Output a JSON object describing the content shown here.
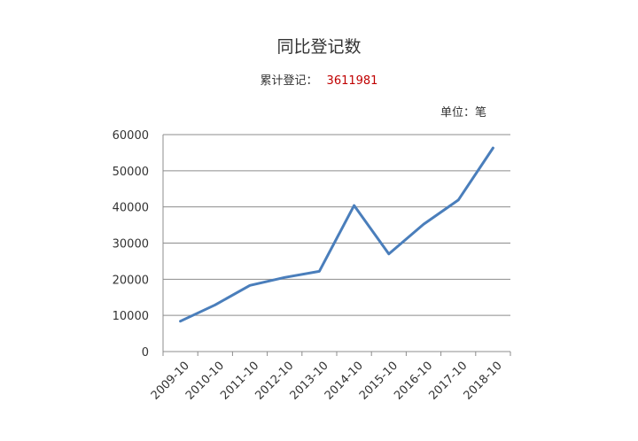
{
  "title": "同比登记数",
  "subtitle": {
    "label": "累计登记：",
    "value": "3611981"
  },
  "unit": "单位：笔",
  "colors": {
    "line": "#4a7ebb",
    "grid": "#8c8c8c",
    "accent": "#c00000"
  },
  "chart_data": {
    "type": "line",
    "categories": [
      "2009-10",
      "2010-10",
      "2011-10",
      "2012-10",
      "2013-10",
      "2014-10",
      "2015-10",
      "2016-10",
      "2017-10",
      "2018-10"
    ],
    "series": [
      {
        "values": [
          8400,
          12900,
          18300,
          20500,
          22200,
          40400,
          27000,
          35200,
          41900,
          56300
        ]
      }
    ],
    "ylim": [
      0,
      60000
    ],
    "yticks": [
      "0",
      "10000",
      "20000",
      "30000",
      "40000",
      "50000",
      "60000"
    ],
    "grid": true,
    "legend": "none"
  }
}
